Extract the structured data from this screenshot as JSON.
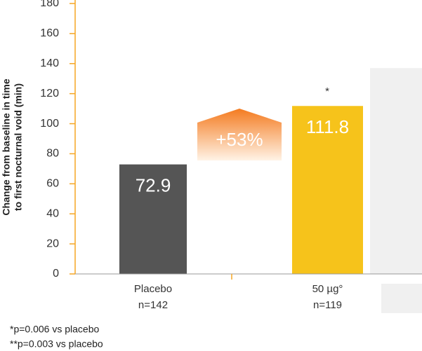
{
  "chart_data": {
    "type": "bar",
    "y_label": [
      "Change from baseline in time",
      "to first nocturnal void (min)"
    ],
    "categories": [
      [
        "Placebo",
        "n=142"
      ],
      [
        "50 µg°",
        "n=119"
      ],
      null
    ],
    "values": [
      72.9,
      111.8,
      137
    ],
    "value_labels": [
      "72.9",
      "111.8",
      null
    ],
    "colors": [
      "#555555",
      "#f6c31b",
      "#f0f0f0"
    ],
    "ylim": [
      0,
      180
    ],
    "yticks": [
      0,
      20,
      40,
      60,
      80,
      100,
      120,
      140,
      160,
      180
    ],
    "annotations": [
      "+53%",
      "*"
    ],
    "footnotes": [
      "*p=0.006 vs placebo",
      "**p=0.003 vs placebo"
    ]
  }
}
